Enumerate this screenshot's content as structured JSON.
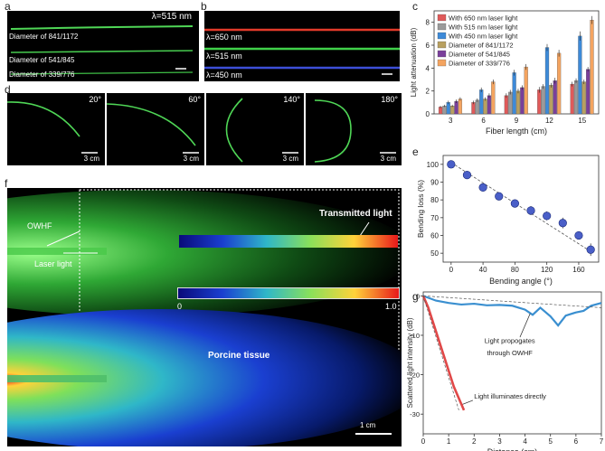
{
  "panel_a": {
    "letter": "a",
    "wavelength": "λ=515 nm",
    "fibers": [
      "Diameter of 841/1172",
      "Diameter of 541/845",
      "Diameter of 339/776"
    ]
  },
  "panel_b": {
    "letter": "b",
    "lines": [
      {
        "label": "λ=650 nm",
        "color": "#e23a2a"
      },
      {
        "label": "λ=515 nm",
        "color": "#3fd04a"
      },
      {
        "label": "λ=450 nm",
        "color": "#3d4fd8"
      }
    ]
  },
  "panel_d": {
    "letter": "d",
    "frames": [
      {
        "angle": "20°",
        "scale": "3 cm"
      },
      {
        "angle": "60°",
        "scale": "3 cm"
      },
      {
        "angle": "140°",
        "scale": "3 cm"
      },
      {
        "angle": "180°",
        "scale": "3 cm"
      }
    ]
  },
  "panel_f": {
    "letter": "f",
    "owhf_label": "OWHF",
    "laser_label": "Laser light",
    "transmitted_label": "Transmitted light",
    "tissue_label": "Porcine  tissue",
    "colorbar_min": "0",
    "colorbar_max": "1.0",
    "scale": "1 cm"
  },
  "chart_data": [
    {
      "panel": "c",
      "type": "bar",
      "title": "",
      "xlabel": "Fiber length (cm)",
      "ylabel": "Light attenuation (dB)",
      "ylim": [
        0,
        9
      ],
      "yticks": [
        "0",
        "2",
        "4",
        "6",
        "8"
      ],
      "categories": [
        "3",
        "6",
        "9",
        "12",
        "15"
      ],
      "series": [
        {
          "name": "With 650 nm laser light",
          "color": "#e05a5a",
          "values": [
            0.6,
            1.0,
            1.6,
            2.1,
            2.6
          ],
          "errors": [
            0.1,
            0.15,
            0.2,
            0.25,
            0.2
          ]
        },
        {
          "name": "With 515 nm laser light",
          "color": "#9a9a9a",
          "values": [
            0.7,
            1.2,
            1.9,
            2.4,
            2.9
          ],
          "errors": [
            0.1,
            0.15,
            0.2,
            0.2,
            0.2
          ]
        },
        {
          "name": "With 450 nm laser light",
          "color": "#3d8ad8",
          "values": [
            1.0,
            2.1,
            3.6,
            5.8,
            6.8
          ],
          "errors": [
            0.15,
            0.2,
            0.25,
            0.3,
            0.4
          ]
        },
        {
          "name": "Diameter of 841/1172",
          "color": "#b8a060",
          "values": [
            0.7,
            1.3,
            2.0,
            2.5,
            2.8
          ],
          "errors": [
            0.1,
            0.15,
            0.2,
            0.2,
            0.2
          ]
        },
        {
          "name": "Diameter of 541/845",
          "color": "#7a3f9a",
          "values": [
            1.1,
            1.6,
            2.3,
            2.9,
            3.9
          ],
          "errors": [
            0.15,
            0.2,
            0.2,
            0.25,
            0.2
          ]
        },
        {
          "name": "Diameter of 339/776",
          "color": "#f4a460",
          "values": [
            1.3,
            2.8,
            4.1,
            5.3,
            8.2
          ],
          "errors": [
            0.15,
            0.2,
            0.25,
            0.3,
            0.35
          ]
        }
      ]
    },
    {
      "panel": "e",
      "type": "scatter",
      "xlabel": "Bending angle (°)",
      "ylabel": "Bending loss (%)",
      "xlim": [
        -10,
        185
      ],
      "ylim": [
        45,
        105
      ],
      "xticks": [
        "0",
        "40",
        "80",
        "120",
        "160"
      ],
      "yticks": [
        "50",
        "60",
        "70",
        "80",
        "90",
        "100"
      ],
      "x": [
        0,
        20,
        40,
        60,
        80,
        100,
        120,
        140,
        160,
        175
      ],
      "y": [
        100,
        94,
        87,
        82,
        78,
        74,
        71,
        67,
        60,
        52
      ],
      "errors": [
        1,
        1.5,
        1.5,
        1.5,
        2,
        2.5,
        2.5,
        3,
        2,
        3.5
      ]
    },
    {
      "panel": "g",
      "type": "line",
      "xlabel": "Distance (cm)",
      "ylabel": "Scattered light intensity (dB)",
      "xlim": [
        0,
        7
      ],
      "ylim": [
        -35,
        1
      ],
      "xticks": [
        "0",
        "1",
        "2",
        "3",
        "4",
        "5",
        "6",
        "7"
      ],
      "yticks": [
        "0",
        "-10",
        "-20",
        "-30"
      ],
      "series": [
        {
          "name": "Light propogates through OWHF",
          "color": "#3a8fd0",
          "x": [
            0,
            0.5,
            1,
            1.5,
            2,
            2.5,
            3,
            3.5,
            4,
            4.3,
            4.6,
            5,
            5.3,
            5.6,
            6,
            6.3,
            6.6,
            7
          ],
          "y": [
            0,
            -1.2,
            -1.8,
            -2.2,
            -2.0,
            -2.4,
            -2.3,
            -2.5,
            -3.5,
            -4.8,
            -3.0,
            -5.2,
            -7.5,
            -5.0,
            -4.2,
            -3.8,
            -2.5,
            -1.8
          ]
        },
        {
          "name": "Light illuminates directly",
          "color": "#e04848",
          "x": [
            0,
            0.2,
            0.4,
            0.6,
            0.8,
            1.0,
            1.2,
            1.4,
            1.6
          ],
          "y": [
            0,
            -3,
            -7,
            -11,
            -15,
            -19,
            -23,
            -26,
            -29
          ]
        }
      ],
      "annotations": [
        "Light propogates",
        "through OWHF",
        "Light illuminates directly"
      ]
    }
  ]
}
